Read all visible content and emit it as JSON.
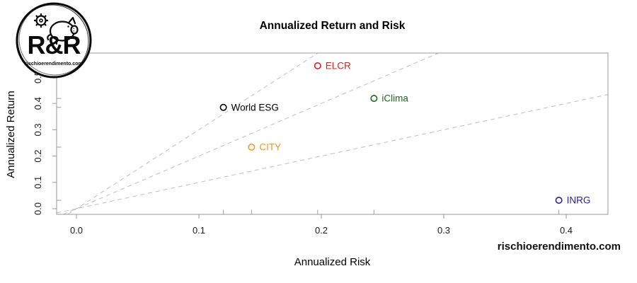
{
  "logo": {
    "brand": "R&R",
    "site": "rischioerendimento.com"
  },
  "watermark": "rischioerendimento.com",
  "chart_data": {
    "type": "scatter",
    "title": "Annualized Return and Risk",
    "xlabel": "Annualized Risk",
    "ylabel": "Annualized Return",
    "xlim": [
      -0.016,
      0.434
    ],
    "ylim": [
      -0.022,
      0.591
    ],
    "x_ticks": [
      0.0,
      0.1,
      0.2,
      0.3,
      0.4
    ],
    "y_ticks": [
      0.0,
      0.1,
      0.2,
      0.3,
      0.4,
      0.5
    ],
    "grid": false,
    "legend": "none",
    "points": [
      {
        "label": "ELCR",
        "x": 0.197,
        "y": 0.543,
        "color": "#d92121"
      },
      {
        "label": "iClima",
        "x": 0.243,
        "y": 0.419,
        "color": "#1e651e"
      },
      {
        "label": "World ESG",
        "x": 0.12,
        "y": 0.385,
        "color": "#000000"
      },
      {
        "label": "CITY",
        "x": 0.143,
        "y": 0.234,
        "color": "#f09a2d"
      },
      {
        "label": "INRG",
        "x": 0.394,
        "y": 0.032,
        "color": "#23239b"
      }
    ],
    "reference_lines": {
      "style": "dashed",
      "color": "#bfbfbf",
      "through_origin_slopes": [
        1,
        2,
        3
      ]
    },
    "rug_marks": true,
    "axis_color": "#9a9a9a",
    "tick_label_color": "#1c1c1c"
  }
}
